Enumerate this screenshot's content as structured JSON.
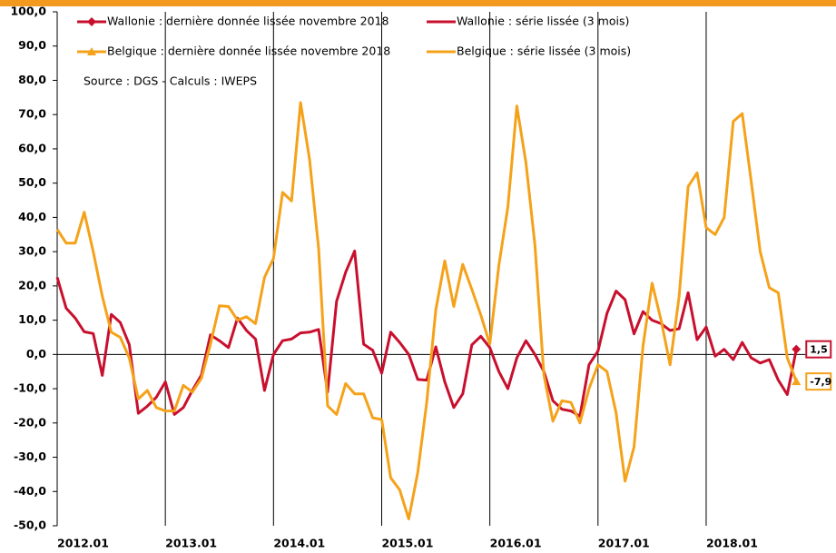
{
  "chart_data": {
    "type": "line",
    "categories": [
      "2012.01",
      null,
      null,
      null,
      null,
      null,
      null,
      null,
      null,
      null,
      null,
      null,
      "2013.01",
      null,
      null,
      null,
      null,
      null,
      null,
      null,
      null,
      null,
      null,
      null,
      "2014.01",
      null,
      null,
      null,
      null,
      null,
      null,
      null,
      null,
      null,
      null,
      null,
      "2015.01",
      null,
      null,
      null,
      null,
      null,
      null,
      null,
      null,
      null,
      null,
      null,
      "2016.01",
      null,
      null,
      null,
      null,
      null,
      null,
      null,
      null,
      null,
      null,
      null,
      "2017.01",
      null,
      null,
      null,
      null,
      null,
      null,
      null,
      null,
      null,
      null,
      null,
      "2018.01",
      null,
      null,
      null,
      null,
      null,
      null,
      null,
      null,
      null,
      null
    ],
    "series": [
      {
        "name": "Wallonie : dernière donnée lissée novembre 2018",
        "color": "#c8102e",
        "marker": "diamond",
        "values": [
          null,
          null,
          null,
          null,
          null,
          null,
          null,
          null,
          null,
          null,
          null,
          null,
          null,
          null,
          null,
          null,
          null,
          null,
          null,
          null,
          null,
          null,
          null,
          null,
          null,
          null,
          null,
          null,
          null,
          null,
          null,
          null,
          null,
          null,
          null,
          null,
          null,
          null,
          null,
          null,
          null,
          null,
          null,
          null,
          null,
          null,
          null,
          null,
          null,
          null,
          null,
          null,
          null,
          null,
          null,
          null,
          null,
          null,
          null,
          null,
          null,
          null,
          null,
          null,
          null,
          null,
          null,
          null,
          null,
          null,
          null,
          null,
          null,
          null,
          null,
          null,
          null,
          null,
          null,
          null,
          null,
          null,
          1.5
        ],
        "value_labels": [
          null,
          null,
          null,
          null,
          null,
          null,
          null,
          null,
          null,
          null,
          null,
          null,
          null,
          null,
          null,
          null,
          null,
          null,
          null,
          null,
          null,
          null,
          null,
          null,
          null,
          null,
          null,
          null,
          null,
          null,
          null,
          null,
          null,
          null,
          null,
          null,
          null,
          null,
          null,
          null,
          null,
          null,
          null,
          null,
          null,
          null,
          null,
          null,
          null,
          null,
          null,
          null,
          null,
          null,
          null,
          null,
          null,
          null,
          null,
          null,
          null,
          null,
          null,
          null,
          null,
          null,
          null,
          null,
          null,
          null,
          null,
          null,
          null,
          null,
          null,
          null,
          null,
          null,
          null,
          null,
          null,
          null,
          "1,5"
        ]
      },
      {
        "name": "Wallonie : série lissée (3 mois)",
        "color": "#c8102e",
        "values": [
          22.5,
          13.5,
          10.6,
          6.6,
          6.1,
          -6.1,
          11.7,
          9.3,
          2.9,
          -17.2,
          -15.1,
          -12.5,
          -8,
          -17.5,
          -15.5,
          -10.5,
          -6,
          5.7,
          4,
          2,
          10.6,
          7,
          4.5,
          -10.5,
          0,
          4,
          4.5,
          6.3,
          6.5,
          7.3,
          -11,
          15.5,
          24,
          30.2,
          3,
          1.2,
          -5.5,
          6.5,
          3.5,
          0,
          -7.3,
          -7.5,
          2.2,
          -8,
          -15.5,
          -11.5,
          2.8,
          5.3,
          2,
          -5,
          -10,
          -1,
          4,
          0,
          -5,
          -13.5,
          -16,
          -16.5,
          -18,
          -3,
          1,
          12,
          18.5,
          16,
          6,
          12.5,
          10,
          9,
          7,
          7.5,
          18,
          4.3,
          8,
          -0.5,
          1.5,
          -1.5,
          3.5,
          -1,
          -2.5,
          -1.5,
          -7.5,
          -11.7,
          1.5
        ]
      },
      {
        "name": "Belgique : dernière donnée lissée novembre 2018",
        "color": "#f5a21b",
        "marker": "triangle",
        "values": [
          null,
          null,
          null,
          null,
          null,
          null,
          null,
          null,
          null,
          null,
          null,
          null,
          null,
          null,
          null,
          null,
          null,
          null,
          null,
          null,
          null,
          null,
          null,
          null,
          null,
          null,
          null,
          null,
          null,
          null,
          null,
          null,
          null,
          null,
          null,
          null,
          null,
          null,
          null,
          null,
          null,
          null,
          null,
          null,
          null,
          null,
          null,
          null,
          null,
          null,
          null,
          null,
          null,
          null,
          null,
          null,
          null,
          null,
          null,
          null,
          null,
          null,
          null,
          null,
          null,
          null,
          null,
          null,
          null,
          null,
          null,
          null,
          null,
          null,
          null,
          null,
          null,
          null,
          null,
          null,
          null,
          null,
          -7.9
        ],
        "value_labels": [
          null,
          null,
          null,
          null,
          null,
          null,
          null,
          null,
          null,
          null,
          null,
          null,
          null,
          null,
          null,
          null,
          null,
          null,
          null,
          null,
          null,
          null,
          null,
          null,
          null,
          null,
          null,
          null,
          null,
          null,
          null,
          null,
          null,
          null,
          null,
          null,
          null,
          null,
          null,
          null,
          null,
          null,
          null,
          null,
          null,
          null,
          null,
          null,
          null,
          null,
          null,
          null,
          null,
          null,
          null,
          null,
          null,
          null,
          null,
          null,
          null,
          null,
          null,
          null,
          null,
          null,
          null,
          null,
          null,
          null,
          null,
          null,
          null,
          null,
          null,
          null,
          null,
          null,
          null,
          null,
          null,
          null,
          "-7,9"
        ]
      },
      {
        "name": "Belgique : série lissée (3 mois)",
        "color": "#f5a21b",
        "values": [
          36.5,
          32.5,
          32.5,
          41.5,
          30,
          17,
          6.5,
          5,
          -1,
          -13,
          -10.5,
          -15.5,
          -16.5,
          -16.5,
          -9,
          -11,
          -7,
          3,
          14.2,
          14,
          10,
          11,
          9,
          22.5,
          28,
          47.3,
          44.8,
          73.5,
          57,
          31,
          -15,
          -17.5,
          -8.5,
          -11.5,
          -11.5,
          -18.5,
          -19,
          -36,
          -39.5,
          -48,
          -34.5,
          -14,
          13,
          27.3,
          14,
          26.3,
          19,
          11.5,
          3,
          26,
          43,
          72.5,
          56,
          32,
          -6,
          -19.5,
          -13.5,
          -14,
          -20,
          -10,
          -3,
          -5,
          -17,
          -37,
          -27,
          2.5,
          20.8,
          10,
          -3,
          17,
          49,
          53,
          37,
          35,
          40,
          68,
          70.3,
          50.5,
          30,
          19.5,
          18,
          -1,
          -7.9
        ]
      }
    ],
    "annotation": "Source : DGS - Calculs : IWEPS",
    "ylim": [
      -50,
      100
    ],
    "yticks": [
      {
        "value": -50,
        "label": "-50,0"
      },
      {
        "value": -40,
        "label": "-40,0"
      },
      {
        "value": -30,
        "label": "-30,0"
      },
      {
        "value": -20,
        "label": "-20,0"
      },
      {
        "value": -10,
        "label": "-10,0"
      },
      {
        "value": 0,
        "label": "0,0"
      },
      {
        "value": 10,
        "label": "10,0"
      },
      {
        "value": 20,
        "label": "20,0"
      },
      {
        "value": 30,
        "label": "30,0"
      },
      {
        "value": 40,
        "label": "40,0"
      },
      {
        "value": 50,
        "label": "50,0"
      },
      {
        "value": 60,
        "label": "60,0"
      },
      {
        "value": 70,
        "label": "70,0"
      },
      {
        "value": 80,
        "label": "80,0"
      },
      {
        "value": 90,
        "label": "90,0"
      },
      {
        "value": 100,
        "label": "100,0"
      }
    ],
    "grid": "x"
  }
}
